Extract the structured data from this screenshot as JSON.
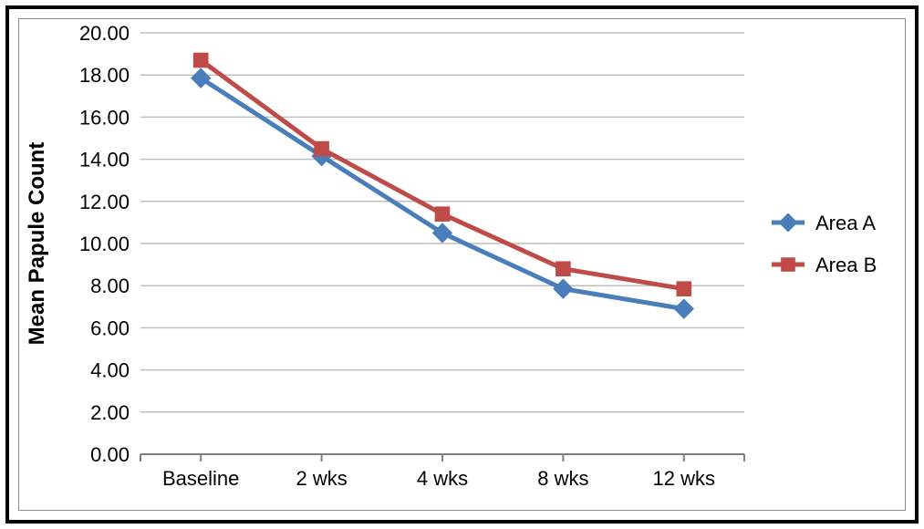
{
  "chart": {
    "type": "line",
    "ylabel": "Mean Papule Count",
    "ylabel_fontsize": 24,
    "ylabel_fontweight": "bold",
    "categories": [
      "Baseline",
      "2 wks",
      "4 wks",
      "8 wks",
      "12 wks"
    ],
    "xtick_fontsize": 22,
    "ylim": [
      0.0,
      20.0
    ],
    "ytick_step": 2.0,
    "yticks": [
      "0.00",
      "2.00",
      "4.00",
      "6.00",
      "8.00",
      "10.00",
      "12.00",
      "14.00",
      "16.00",
      "18.00",
      "20.00"
    ],
    "ytick_fontsize": 22,
    "series": [
      {
        "name": "Area A",
        "color": "#4a7ebb",
        "marker": "diamond",
        "marker_size": 14,
        "line_width": 5,
        "values": [
          17.85,
          14.15,
          10.5,
          7.85,
          6.9
        ]
      },
      {
        "name": "Area B",
        "color": "#be4b48",
        "marker": "square",
        "marker_size": 13,
        "line_width": 5,
        "values": [
          18.7,
          14.5,
          11.4,
          8.8,
          7.85
        ]
      }
    ],
    "grid_color": "#bfbfbf",
    "axis_color": "#808080",
    "background_color": "#ffffff",
    "plot_background_color": "#ffffff",
    "legend": {
      "position": "right",
      "fontsize": 22,
      "marker_line_length": 36
    }
  },
  "layout": {
    "outer_border_color": "#000000",
    "outer_border_width": 4,
    "inner_border_color": "#8a8a8a"
  }
}
